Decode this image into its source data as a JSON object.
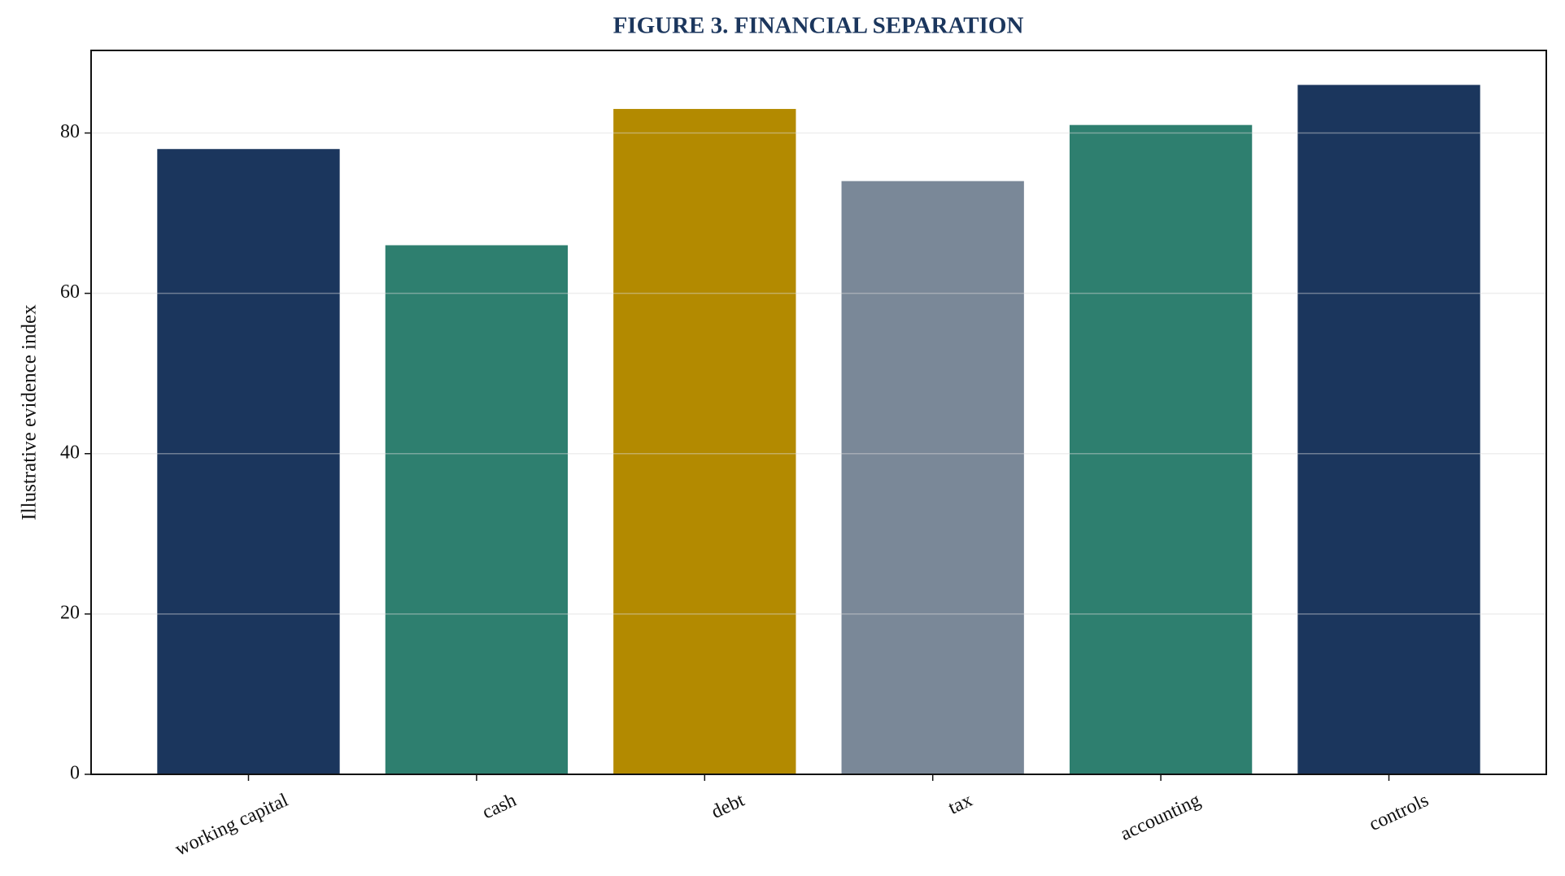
{
  "chart_data": {
    "type": "bar",
    "title": "FIGURE 3. FINANCIAL SEPARATION",
    "y_label": "Illustrative evidence index",
    "categories": [
      "working capital",
      "cash",
      "debt",
      "tax",
      "accounting",
      "controls"
    ],
    "values": [
      78,
      66,
      83,
      74,
      81,
      86
    ],
    "colors": [
      "#1b365d",
      "#2e7f6f",
      "#b38a00",
      "#7a8898",
      "#2e7f6f",
      "#1b365d"
    ],
    "ylim": [
      0,
      90.3
    ],
    "yticks": [
      0,
      20,
      40,
      60,
      80
    ],
    "grid": true
  }
}
